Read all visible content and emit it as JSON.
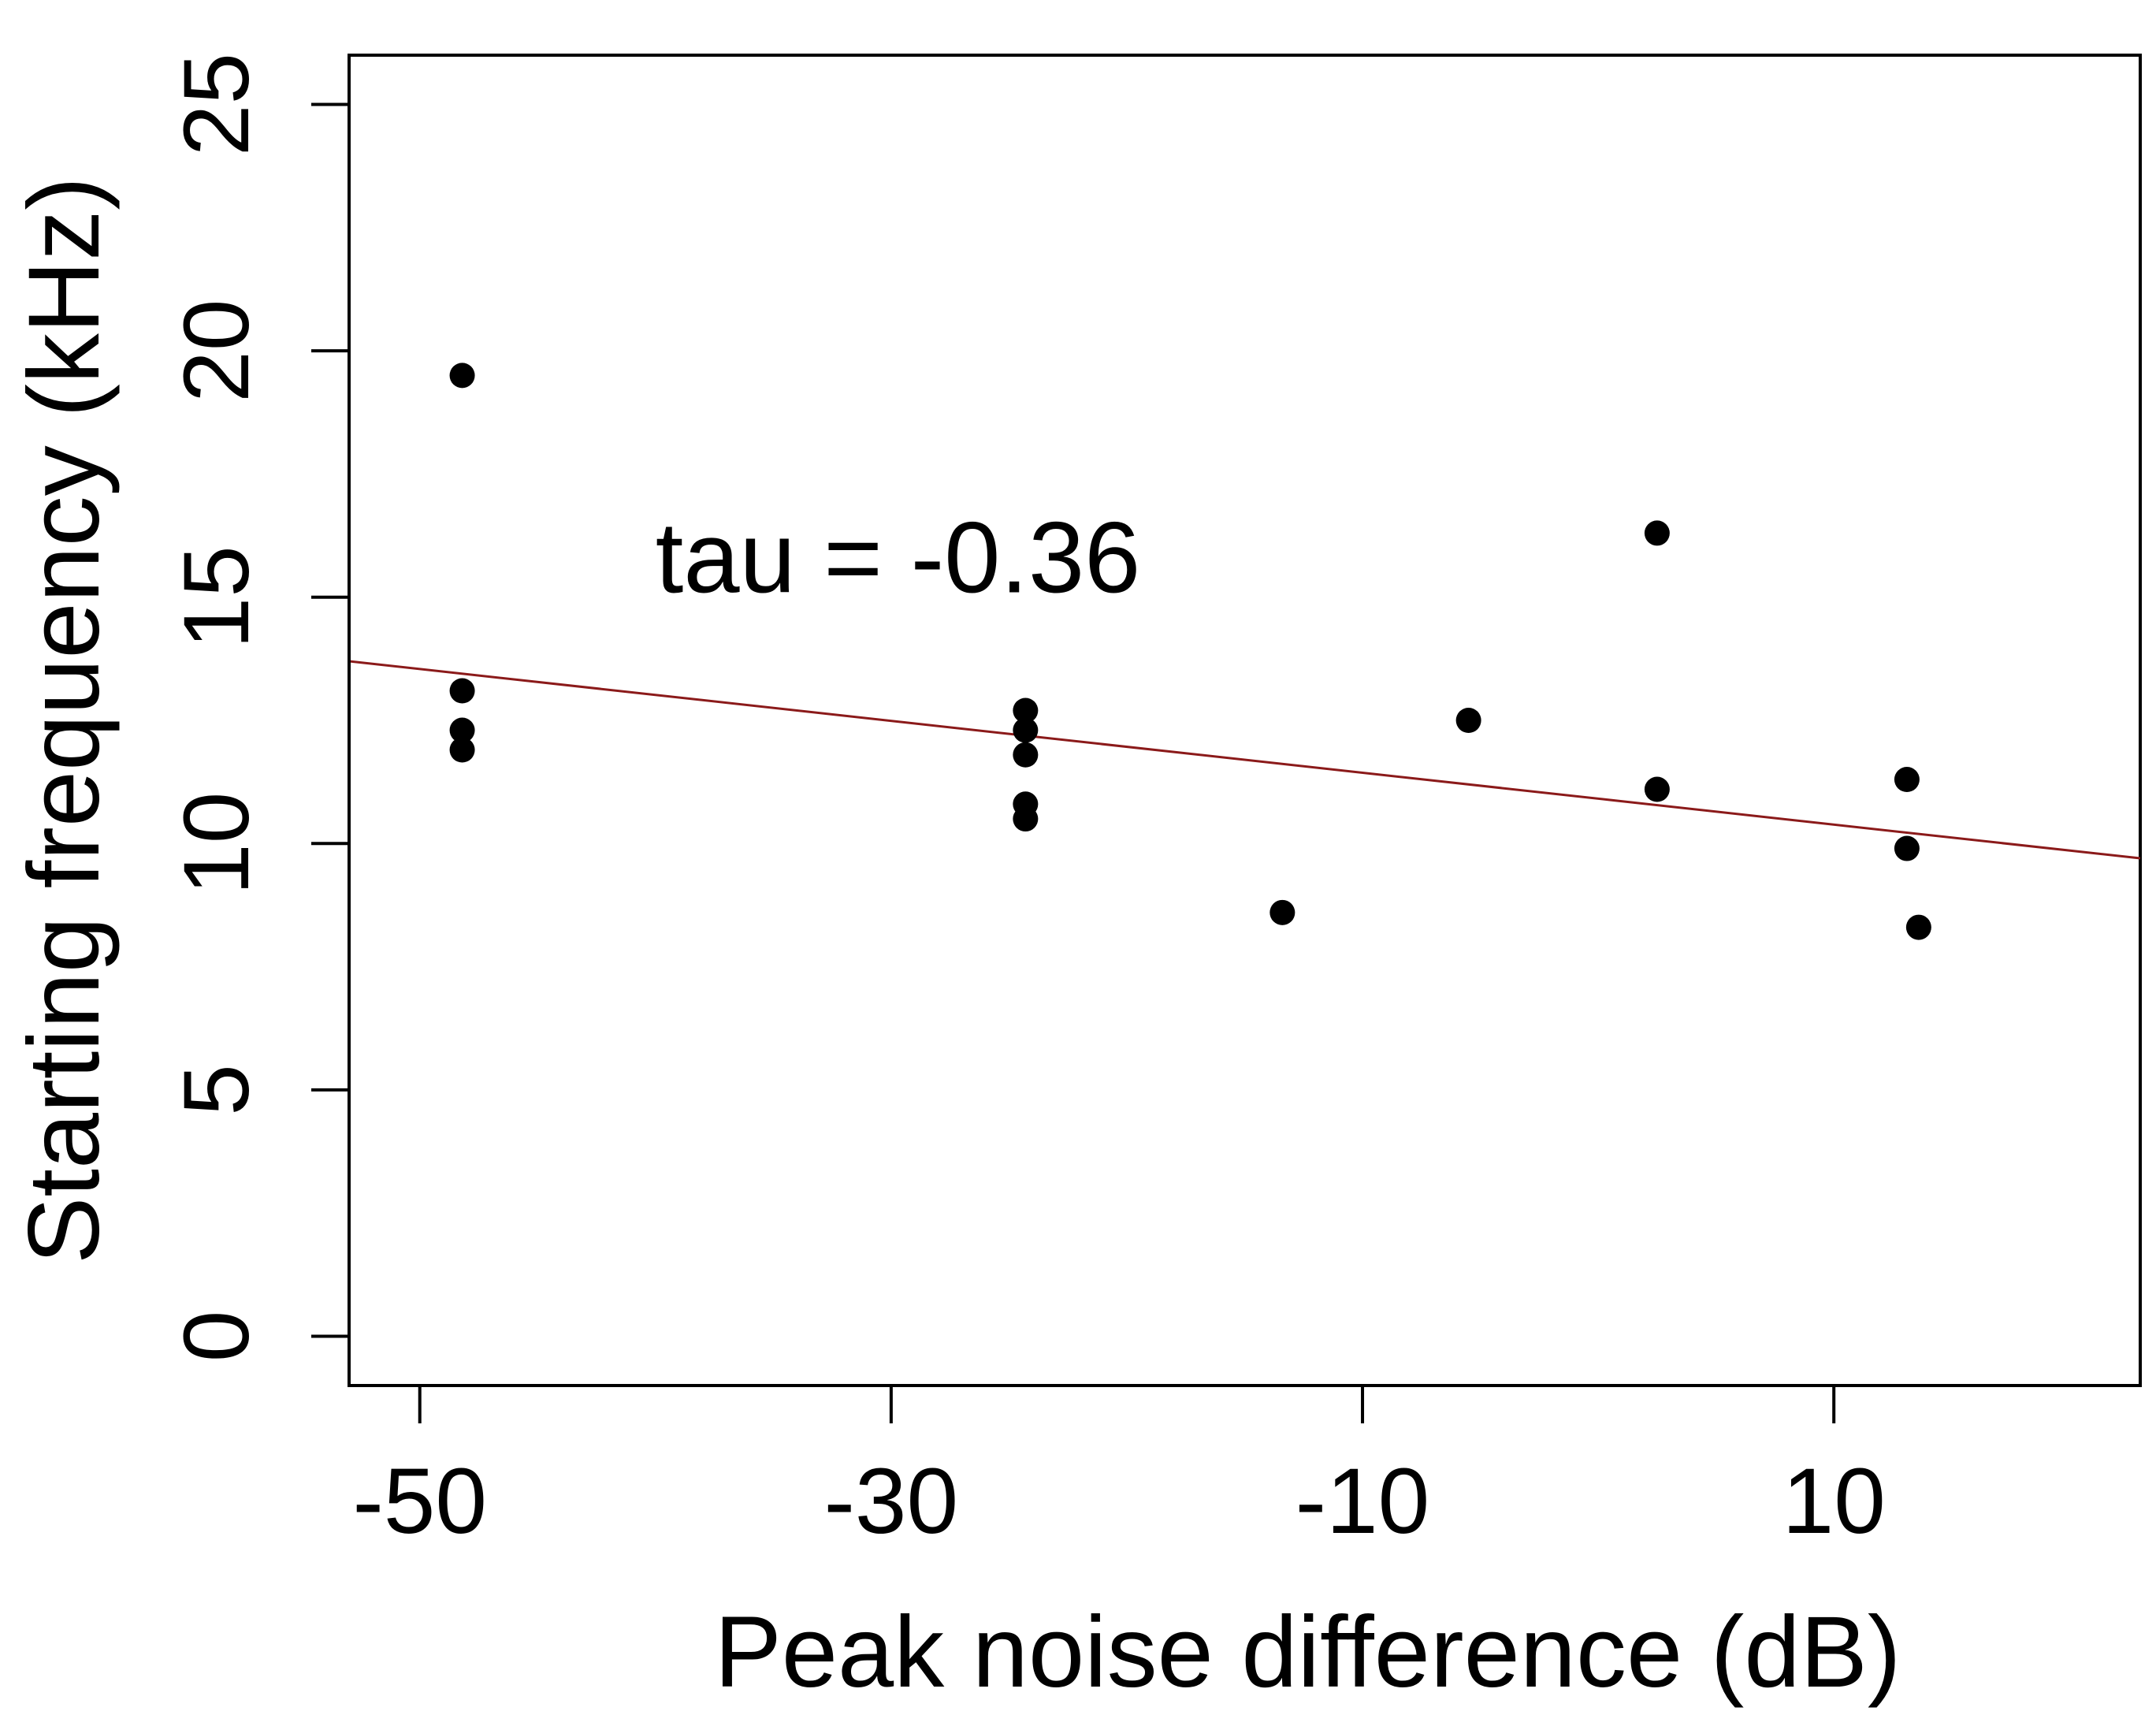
{
  "chart_data": {
    "type": "scatter",
    "title": "",
    "xlabel": "Peak noise difference (dB)",
    "ylabel": "Starting frequency (kHz)",
    "xlim": [
      -53,
      23
    ],
    "ylim": [
      -1,
      26
    ],
    "xticks": [
      -50,
      -30,
      -10,
      10
    ],
    "xtick_labels": [
      "-50",
      "-30",
      "-10",
      "10"
    ],
    "yticks": [
      0,
      5,
      10,
      15,
      20,
      25
    ],
    "ytick_labels": [
      "0",
      "5",
      "10",
      "15",
      "20",
      "25"
    ],
    "annotation": "tau = -0.36",
    "annotation_position": [
      -40,
      15.1
    ],
    "points": [
      {
        "x": -48.2,
        "y": 19.5
      },
      {
        "x": -48.2,
        "y": 13.1
      },
      {
        "x": -48.2,
        "y": 12.3
      },
      {
        "x": -48.2,
        "y": 11.9
      },
      {
        "x": -24.3,
        "y": 12.7
      },
      {
        "x": -24.3,
        "y": 12.3
      },
      {
        "x": -24.3,
        "y": 11.8
      },
      {
        "x": -24.3,
        "y": 10.8
      },
      {
        "x": -24.3,
        "y": 10.5
      },
      {
        "x": -13.4,
        "y": 8.6
      },
      {
        "x": -5.5,
        "y": 12.5
      },
      {
        "x": 2.5,
        "y": 16.3
      },
      {
        "x": 2.5,
        "y": 11.1
      },
      {
        "x": 13.1,
        "y": 11.3
      },
      {
        "x": 13.1,
        "y": 9.9
      },
      {
        "x": 13.6,
        "y": 8.3
      }
    ],
    "trend_line": {
      "x": [
        -53,
        23
      ],
      "y": [
        13.7,
        9.7
      ]
    },
    "colors": {
      "points": "#000000",
      "trend_line": "#8b1a1a",
      "axes": "#000000"
    }
  }
}
